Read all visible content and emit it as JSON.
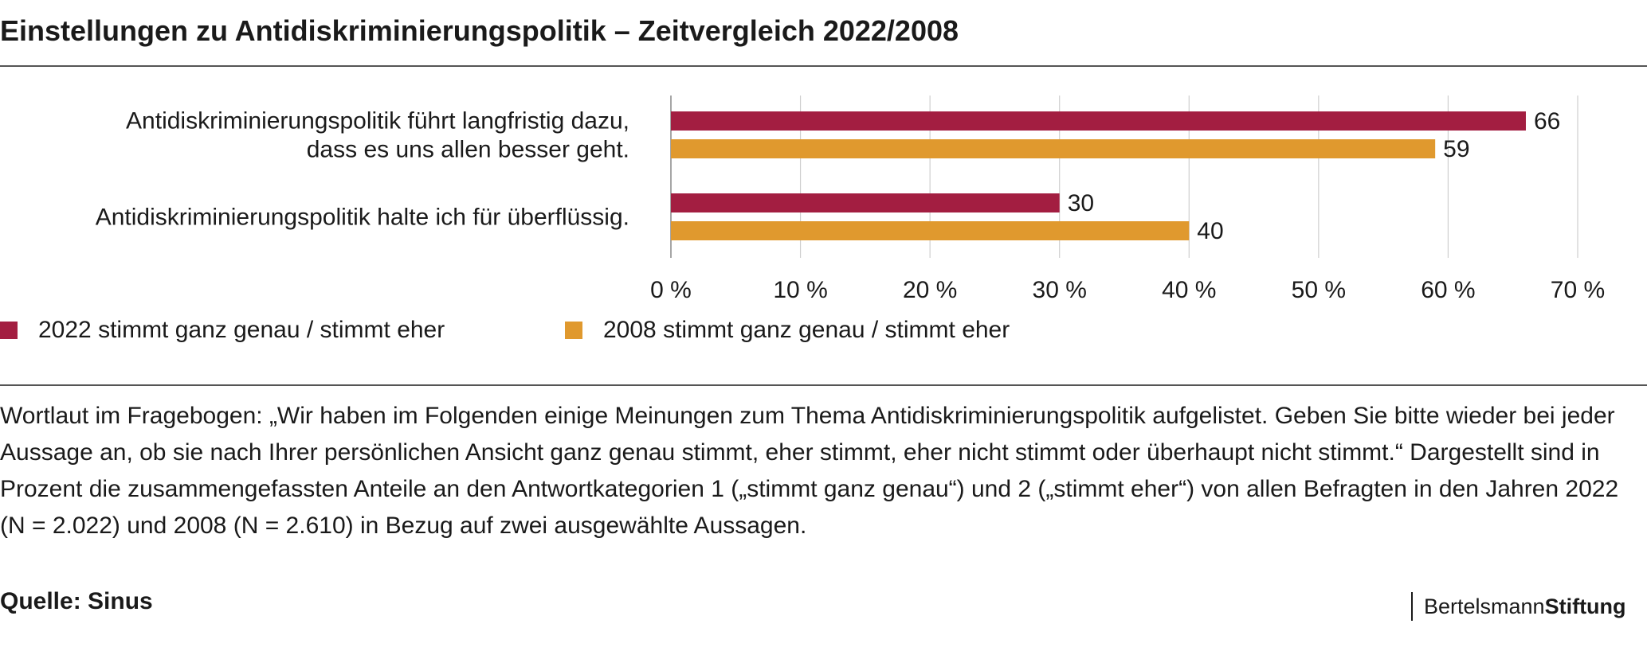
{
  "title": "Einstellungen zu Antidiskriminierungspolitik – Zeitvergleich 2022/2008",
  "chart_data": {
    "type": "bar",
    "orientation": "horizontal",
    "categories": [
      [
        "Antidiskriminierungspolitik führt langfristig dazu,",
        "dass es uns allen besser geht."
      ],
      [
        "Antidiskriminierungspolitik halte ich für überflüssig."
      ]
    ],
    "series": [
      {
        "name": "2022 stimmt ganz genau / stimmt eher",
        "values": [
          66,
          30
        ],
        "color": "#a31e41"
      },
      {
        "name": "2008 stimmt ganz genau / stimmt eher",
        "values": [
          59,
          40
        ],
        "color": "#e0992e"
      }
    ],
    "xlim": [
      0,
      70
    ],
    "xticks": [
      0,
      10,
      20,
      30,
      40,
      50,
      60,
      70
    ],
    "tick_labels": [
      "0 %",
      "10 %",
      "20 %",
      "30 %",
      "40 %",
      "50 %",
      "60 %",
      "70 %"
    ],
    "grid": true,
    "legend_position": "bottom-left"
  },
  "legend": [
    {
      "label": "2022 stimmt ganz genau / stimmt eher",
      "color": "#a31e41"
    },
    {
      "label": "2008 stimmt ganz genau / stimmt eher",
      "color": "#e0992e"
    }
  ],
  "note": "Wortlaut im Fragebogen: „Wir haben im Folgenden einige Meinungen zum Thema Antidiskriminierungspolitik aufgelistet. Geben Sie bitte wieder bei jeder Aussage an, ob sie nach Ihrer persönlichen Ansicht ganz genau stimmt, eher stimmt, eher nicht stimmt oder überhaupt nicht stimmt.“ Dargestellt sind in Prozent die zusammengefassten Anteile an den Antwortkategorien 1 („stimmt ganz genau“) und 2 („stimmt eher“) von allen Befragten in den Jahren 2022 (N = 2.022) und 2008 (N = 2.610) in Bezug auf zwei ausgewählte Aussagen.",
  "source": "Quelle: Sinus",
  "logo": {
    "part1": "Bertelsmann",
    "part2": "Stiftung"
  }
}
